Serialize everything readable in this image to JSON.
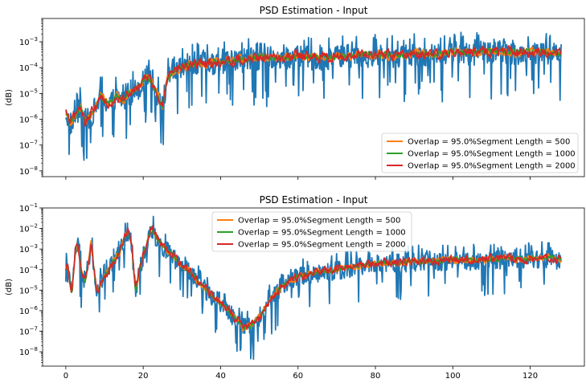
{
  "chart_data": [
    {
      "type": "line",
      "title": "PSD Estimation - Input",
      "xlabel": "",
      "ylabel": "(dB)",
      "xlim": [
        -6,
        134
      ],
      "ylim": [
        6e-09,
        0.008
      ],
      "yscale": "log",
      "x_ticks": [
        0,
        20,
        40,
        60,
        80,
        100,
        120
      ],
      "x_tick_labels_shown": false,
      "y_ticks": [
        1e-08,
        1e-07,
        1e-06,
        1e-05,
        0.0001,
        0.001
      ],
      "y_tick_labels": [
        {
          "base": "10",
          "exp": "−8"
        },
        {
          "base": "10",
          "exp": "−7"
        },
        {
          "base": "10",
          "exp": "−6"
        },
        {
          "base": "10",
          "exp": "−5"
        },
        {
          "base": "10",
          "exp": "−4"
        },
        {
          "base": "10",
          "exp": "−3"
        }
      ],
      "legend_position": "lower-right",
      "envelope_x": [
        0,
        1,
        2,
        3,
        4,
        5,
        6,
        7,
        8,
        9,
        10,
        11,
        12,
        13,
        14,
        15,
        16,
        17,
        18,
        19,
        20,
        21,
        22,
        23,
        24,
        25,
        26,
        27,
        28,
        29,
        30,
        32,
        35,
        40,
        45,
        50,
        55,
        60,
        65,
        70,
        75,
        80,
        85,
        90,
        95,
        100,
        105,
        110,
        115,
        120,
        125,
        128
      ],
      "envelope_y": [
        2e-06,
        7e-07,
        1e-06,
        2e-06,
        3e-06,
        8e-07,
        1.2e-06,
        2e-06,
        4e-06,
        8e-06,
        6e-06,
        4e-06,
        5e-06,
        8e-06,
        7e-06,
        6e-06,
        1.2e-05,
        1.1e-05,
        1.5e-05,
        2e-05,
        3e-05,
        5e-05,
        3e-05,
        1.5e-05,
        8e-06,
        3e-06,
        3e-05,
        5e-05,
        7e-05,
        8e-05,
        0.0001,
        0.00013,
        0.00015,
        0.00016,
        0.0002,
        0.00025,
        0.00022,
        0.00028,
        0.00024,
        0.00027,
        0.0003,
        0.00032,
        0.0003,
        0.00035,
        0.00032,
        0.0004,
        0.00038,
        0.00045,
        0.0004,
        0.00042,
        0.0004,
        0.00035
      ],
      "series": [
        {
          "name": "",
          "color": "#1f77b4",
          "role": "raw periodogram",
          "spread": 1.0
        },
        {
          "name": "Overlap = 95.0%Segment Length = 500",
          "color": "#ff7f0e",
          "spread": 0.28
        },
        {
          "name": "Overlap = 95.0%Segment Length = 1000",
          "color": "#2ca02c",
          "spread": 0.2
        },
        {
          "name": "Overlap = 95.0%Segment Length = 2000",
          "color": "#d62728",
          "spread": 0.34
        }
      ]
    },
    {
      "type": "line",
      "title": "PSD Estimation - Input",
      "xlabel": "",
      "ylabel": "(dB)",
      "xlim": [
        -6,
        134
      ],
      "ylim": [
        2e-09,
        0.1
      ],
      "yscale": "log",
      "x_ticks": [
        0,
        20,
        40,
        60,
        80,
        100,
        120
      ],
      "x_tick_labels": [
        "0",
        "20",
        "40",
        "60",
        "80",
        "100",
        "120"
      ],
      "y_ticks": [
        1e-08,
        1e-07,
        1e-06,
        1e-05,
        0.0001,
        0.001,
        0.01,
        0.1
      ],
      "y_tick_labels": [
        {
          "base": "10",
          "exp": "−8"
        },
        {
          "base": "10",
          "exp": "−7"
        },
        {
          "base": "10",
          "exp": "−6"
        },
        {
          "base": "10",
          "exp": "−5"
        },
        {
          "base": "10",
          "exp": "−4"
        },
        {
          "base": "10",
          "exp": "−3"
        },
        {
          "base": "10",
          "exp": "−2"
        },
        {
          "base": "10",
          "exp": "−1"
        }
      ],
      "legend_position": "upper-center",
      "envelope_x": [
        0,
        0.5,
        1,
        1.5,
        2,
        2.5,
        3,
        3.5,
        4,
        5,
        6,
        6.5,
        7,
        8,
        9,
        10,
        11,
        12,
        13,
        14,
        15,
        16,
        17,
        18,
        19,
        20,
        21,
        22,
        23,
        24,
        25,
        26,
        28,
        30,
        32,
        34,
        36,
        38,
        40,
        42,
        44,
        46,
        48,
        50,
        52,
        54,
        56,
        58,
        60,
        65,
        70,
        75,
        80,
        85,
        90,
        95,
        100,
        105,
        110,
        115,
        120,
        125,
        128
      ],
      "envelope_y": [
        8e-05,
        0.0002,
        3e-05,
        5e-06,
        8e-05,
        0.001,
        0.002,
        0.0005,
        8e-05,
        3e-05,
        0.0003,
        0.002,
        0.0003,
        8e-06,
        2e-05,
        5e-05,
        0.0001,
        0.0002,
        0.0004,
        0.0008,
        0.003,
        0.008,
        0.002,
        1e-05,
        0.0001,
        0.0005,
        0.002,
        0.01,
        0.005,
        0.003,
        0.0015,
        0.001,
        0.0004,
        0.00015,
        8e-05,
        3e-05,
        1.2e-05,
        5e-06,
        2.5e-06,
        1e-06,
        4e-07,
        1.5e-07,
        2e-07,
        5e-07,
        2e-06,
        6e-06,
        1.5e-05,
        3e-05,
        5e-05,
        7e-05,
        0.0001,
        0.00015,
        0.0002,
        0.00022,
        0.00025,
        0.00026,
        0.0003,
        0.00028,
        0.00032,
        0.00035,
        0.00034,
        0.00038,
        0.0003
      ],
      "series": [
        {
          "name": "",
          "color": "#1f77b4",
          "role": "raw periodogram",
          "spread": 1.0
        },
        {
          "name": "Overlap = 95.0%Segment Length = 500",
          "color": "#ff7f0e",
          "spread": 0.28
        },
        {
          "name": "Overlap = 95.0%Segment Length = 1000",
          "color": "#2ca02c",
          "spread": 0.2
        },
        {
          "name": "Overlap = 95.0%Segment Length = 2000",
          "color": "#d62728",
          "spread": 0.34
        }
      ]
    }
  ]
}
